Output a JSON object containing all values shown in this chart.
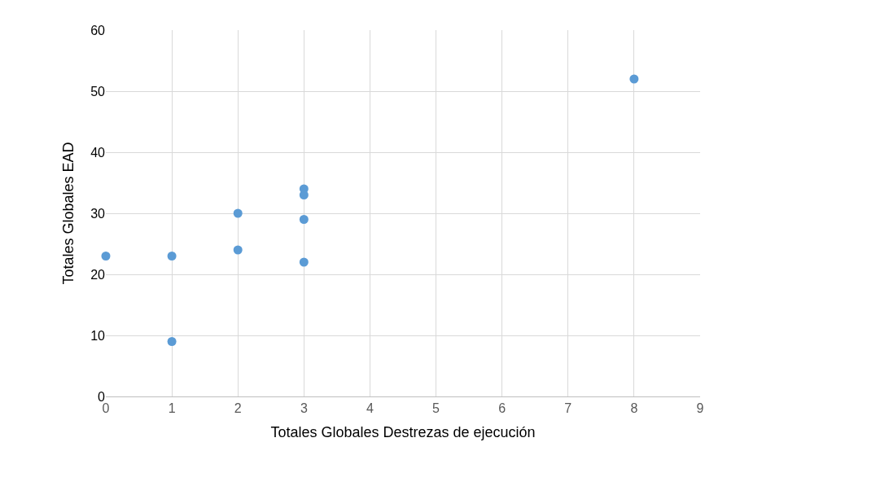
{
  "chart_data": {
    "type": "scatter",
    "xlabel": "Totales Globales Destrezas de ejecución",
    "ylabel": "Totales Globales EAD",
    "x": [
      0,
      1,
      1,
      2,
      2,
      3,
      3,
      3,
      3,
      8
    ],
    "values": [
      23,
      23,
      9,
      30,
      24,
      34,
      33,
      29,
      22,
      52
    ],
    "color": "#5b9bd5",
    "marker": "circle",
    "xlim": [
      0,
      9
    ],
    "xticks": [
      0,
      1,
      2,
      3,
      4,
      5,
      6,
      7,
      8,
      9
    ],
    "ylim": [
      0,
      60
    ],
    "yticks": [
      0,
      10,
      20,
      30,
      40,
      50,
      60
    ],
    "grid": true
  }
}
